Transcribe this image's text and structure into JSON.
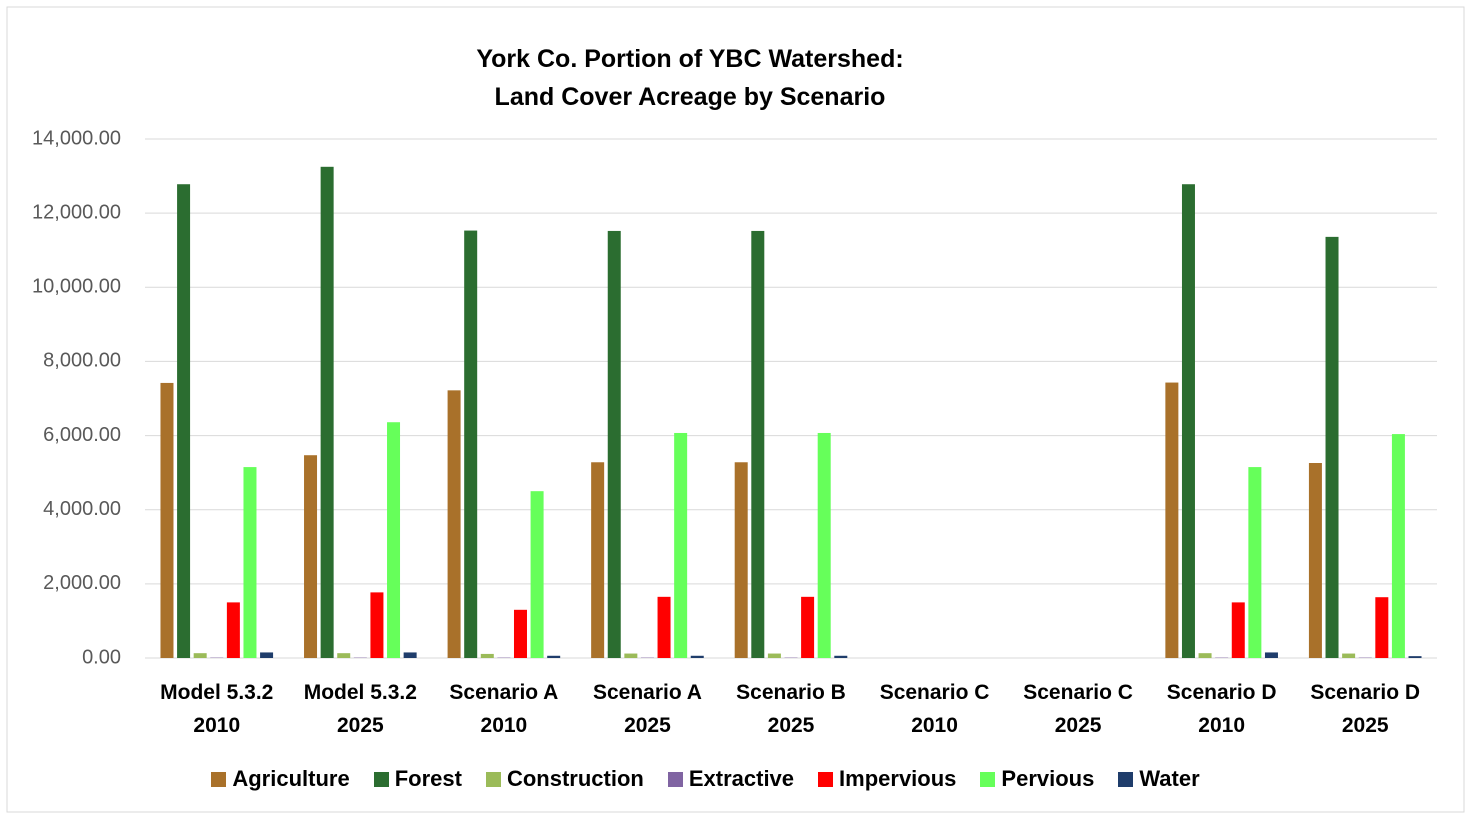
{
  "chart_data": {
    "type": "bar",
    "title": "York Co. Portion of YBC Watershed:\nLand Cover Acreage by Scenario",
    "categories": [
      "Model 5.3.2\n2010",
      "Model 5.3.2\n2025",
      "Scenario A\n2010",
      "Scenario A\n2025",
      "Scenario B\n2025",
      "Scenario C\n2010",
      "Scenario C\n2025",
      "Scenario D\n2010",
      "Scenario D\n2025"
    ],
    "series": [
      {
        "name": "Agriculture",
        "color": "#a9712a",
        "values": [
          7420,
          5470,
          7220,
          5280,
          5280,
          0,
          0,
          7430,
          5260
        ]
      },
      {
        "name": "Forest",
        "color": "#2b6d30",
        "values": [
          12780,
          13250,
          11530,
          11520,
          11520,
          0,
          0,
          12780,
          11360
        ]
      },
      {
        "name": "Construction",
        "color": "#9bbb59",
        "values": [
          130,
          130,
          110,
          120,
          120,
          0,
          0,
          130,
          120
        ]
      },
      {
        "name": "Extractive",
        "color": "#8064a2",
        "values": [
          10,
          10,
          10,
          10,
          10,
          0,
          0,
          10,
          10
        ]
      },
      {
        "name": "Impervious",
        "color": "#ff0000",
        "values": [
          1500,
          1770,
          1300,
          1650,
          1650,
          0,
          0,
          1500,
          1640
        ]
      },
      {
        "name": "Pervious",
        "color": "#66ff5a",
        "values": [
          5150,
          6360,
          4500,
          6070,
          6070,
          0,
          0,
          5150,
          6040
        ]
      },
      {
        "name": "Water",
        "color": "#1f3d6b",
        "values": [
          150,
          150,
          60,
          60,
          60,
          0,
          0,
          150,
          50
        ]
      }
    ],
    "ylim": [
      0,
      14000
    ],
    "yticks": [
      {
        "value": 0,
        "label": "0.00"
      },
      {
        "value": 2000,
        "label": "2,000.00"
      },
      {
        "value": 4000,
        "label": "4,000.00"
      },
      {
        "value": 6000,
        "label": "6,000.00"
      },
      {
        "value": 8000,
        "label": "8,000.00"
      },
      {
        "value": 10000,
        "label": "10,000.00"
      },
      {
        "value": 12000,
        "label": "12,000.00"
      },
      {
        "value": 14000,
        "label": "14,000.00"
      }
    ],
    "grid": true,
    "legend": "bottom"
  }
}
